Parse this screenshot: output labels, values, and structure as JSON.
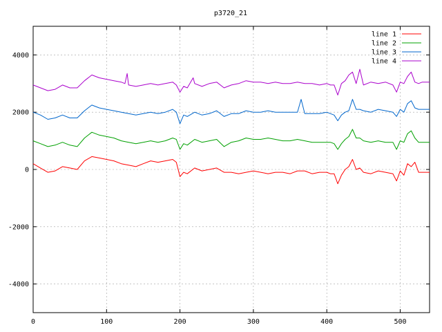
{
  "chart_data": {
    "type": "line",
    "title": "p3720_21",
    "xlabel": "",
    "ylabel": "",
    "xlim": [
      0,
      540
    ],
    "ylim": [
      -5000,
      5000
    ],
    "xticks": [
      0,
      100,
      200,
      300,
      400,
      500
    ],
    "yticks": [
      -4000,
      -2000,
      0,
      2000,
      4000
    ],
    "grid": true,
    "legend_position": "top-right",
    "series": [
      {
        "name": "line 1",
        "color": "#ff0000",
        "x": [
          0,
          10,
          20,
          30,
          40,
          50,
          60,
          70,
          80,
          90,
          100,
          110,
          120,
          130,
          140,
          150,
          160,
          170,
          180,
          190,
          195,
          200,
          205,
          210,
          220,
          230,
          240,
          250,
          260,
          270,
          280,
          290,
          300,
          310,
          320,
          330,
          340,
          350,
          360,
          370,
          380,
          390,
          400,
          405,
          410,
          415,
          420,
          425,
          430,
          435,
          440,
          445,
          450,
          460,
          470,
          480,
          490,
          495,
          500,
          505,
          510,
          515,
          520,
          525,
          530,
          540
        ],
        "y": [
          200,
          50,
          -100,
          -50,
          100,
          50,
          0,
          300,
          450,
          400,
          350,
          300,
          200,
          150,
          100,
          200,
          300,
          250,
          300,
          350,
          250,
          -250,
          -100,
          -150,
          50,
          -50,
          0,
          50,
          -100,
          -100,
          -150,
          -100,
          -50,
          -100,
          -150,
          -100,
          -100,
          -150,
          -50,
          -50,
          -150,
          -100,
          -100,
          -150,
          -150,
          -500,
          -200,
          0,
          100,
          350,
          0,
          50,
          -100,
          -150,
          -50,
          -100,
          -150,
          -400,
          -50,
          -200,
          200,
          100,
          250,
          -100,
          -100,
          -100
        ]
      },
      {
        "name": "line 2",
        "color": "#00a000",
        "x": [
          0,
          10,
          20,
          30,
          40,
          50,
          60,
          70,
          80,
          90,
          100,
          110,
          120,
          130,
          140,
          150,
          160,
          170,
          180,
          190,
          195,
          200,
          205,
          210,
          220,
          230,
          240,
          250,
          260,
          270,
          280,
          290,
          300,
          310,
          320,
          330,
          340,
          350,
          360,
          370,
          380,
          390,
          400,
          405,
          410,
          415,
          420,
          425,
          430,
          435,
          440,
          445,
          450,
          460,
          470,
          480,
          490,
          495,
          500,
          505,
          510,
          515,
          520,
          525,
          530,
          540
        ],
        "y": [
          1000,
          900,
          800,
          850,
          950,
          850,
          800,
          1100,
          1300,
          1200,
          1150,
          1100,
          1000,
          950,
          900,
          950,
          1000,
          950,
          1000,
          1100,
          1050,
          700,
          900,
          850,
          1050,
          950,
          1000,
          1050,
          800,
          950,
          1000,
          1100,
          1050,
          1050,
          1100,
          1050,
          1000,
          1000,
          1050,
          1000,
          950,
          950,
          950,
          950,
          900,
          700,
          900,
          1050,
          1150,
          1400,
          1100,
          1100,
          1000,
          950,
          1000,
          950,
          950,
          700,
          1000,
          950,
          1250,
          1350,
          1100,
          950,
          950,
          950
        ]
      },
      {
        "name": "line 3",
        "color": "#0066cc",
        "x": [
          0,
          10,
          20,
          30,
          40,
          50,
          60,
          70,
          80,
          90,
          100,
          110,
          120,
          130,
          140,
          150,
          160,
          170,
          180,
          190,
          195,
          200,
          205,
          210,
          220,
          230,
          240,
          250,
          260,
          270,
          280,
          290,
          300,
          310,
          320,
          330,
          340,
          350,
          360,
          365,
          370,
          380,
          390,
          400,
          405,
          410,
          415,
          420,
          425,
          430,
          435,
          440,
          445,
          450,
          460,
          470,
          480,
          490,
          495,
          500,
          505,
          510,
          515,
          520,
          525,
          530,
          540
        ],
        "y": [
          2000,
          1900,
          1750,
          1800,
          1900,
          1800,
          1800,
          2050,
          2250,
          2150,
          2100,
          2050,
          2000,
          1950,
          1900,
          1950,
          2000,
          1950,
          2000,
          2100,
          2000,
          1600,
          1900,
          1850,
          2000,
          1900,
          1950,
          2050,
          1850,
          1950,
          1950,
          2050,
          2000,
          2000,
          2050,
          2000,
          2000,
          2000,
          2000,
          2450,
          1950,
          1950,
          1950,
          2000,
          1950,
          1900,
          1700,
          1900,
          2000,
          2050,
          2450,
          2100,
          2100,
          2050,
          2000,
          2100,
          2050,
          2000,
          1850,
          2100,
          2000,
          2300,
          2400,
          2150,
          2100,
          2100,
          2100
        ]
      },
      {
        "name": "line 4",
        "color": "#aa00cc",
        "x": [
          0,
          10,
          20,
          30,
          40,
          50,
          60,
          70,
          80,
          90,
          100,
          110,
          120,
          125,
          128,
          130,
          140,
          150,
          160,
          170,
          180,
          190,
          195,
          200,
          205,
          210,
          218,
          220,
          230,
          240,
          250,
          260,
          270,
          280,
          290,
          300,
          310,
          320,
          330,
          340,
          350,
          360,
          370,
          380,
          390,
          400,
          405,
          410,
          415,
          420,
          425,
          430,
          435,
          440,
          445,
          450,
          460,
          470,
          480,
          490,
          495,
          500,
          505,
          510,
          515,
          520,
          525,
          530,
          540
        ],
        "y": [
          2950,
          2850,
          2750,
          2800,
          2950,
          2850,
          2850,
          3100,
          3300,
          3200,
          3150,
          3100,
          3050,
          3000,
          3350,
          2950,
          2900,
          2950,
          3000,
          2950,
          3000,
          3050,
          2950,
          2700,
          2900,
          2850,
          3200,
          3000,
          2900,
          3000,
          3050,
          2850,
          2950,
          3000,
          3100,
          3050,
          3050,
          3000,
          3050,
          3000,
          3000,
          3050,
          3000,
          3000,
          2950,
          3000,
          2950,
          2950,
          2600,
          3000,
          3100,
          3300,
          3400,
          3000,
          3500,
          2950,
          3050,
          3000,
          3050,
          2950,
          2700,
          3050,
          3000,
          3250,
          3400,
          3050,
          3000,
          3050,
          3050
        ]
      }
    ]
  }
}
